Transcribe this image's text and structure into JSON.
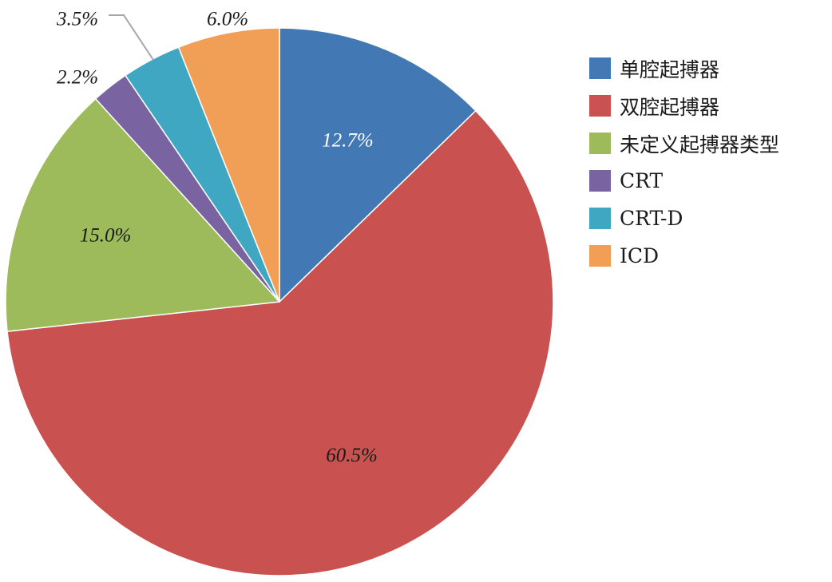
{
  "chart_data": {
    "type": "pie",
    "start_angle": "12 o'clock, clockwise",
    "legend_position": "right",
    "slices": [
      {
        "label": "单腔起搏器",
        "value": 12.7,
        "display": "12.7%",
        "color": "#4279B4"
      },
      {
        "label": "双腔起搏器",
        "value": 60.5,
        "display": "60.5%",
        "color": "#C9514F"
      },
      {
        "label": "未定义起搏器类型",
        "value": 15.0,
        "display": "15.0%",
        "color": "#9DBB5B"
      },
      {
        "label": "CRT",
        "value": 2.2,
        "display": "2.2%",
        "color": "#7A63A1"
      },
      {
        "label": "CRT-D",
        "value": 3.5,
        "display": "3.5%",
        "color": "#3FA7C1"
      },
      {
        "label": "ICD",
        "value": 6.0,
        "display": "6.0%",
        "color": "#F19E57"
      }
    ]
  }
}
